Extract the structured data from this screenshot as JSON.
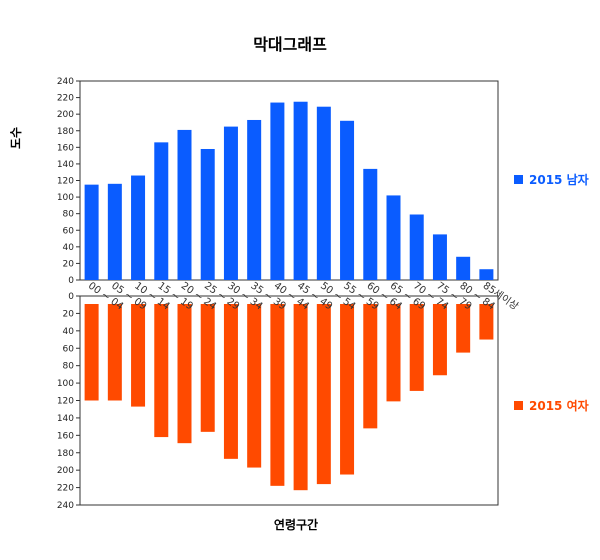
{
  "chart_data": {
    "type": "bar",
    "title": "막대그래프",
    "xlabel": "연령구간",
    "ylabel": "도수",
    "categories": [
      "00 ~ 04",
      "05 ~ 09",
      "10 ~ 14",
      "15 ~ 19",
      "20 ~ 24",
      "25 ~ 29",
      "30 ~ 34",
      "35 ~ 39",
      "40 ~ 44",
      "45 ~ 49",
      "50 ~ 54",
      "55 ~ 59",
      "60 ~ 64",
      "65 ~ 69",
      "70 ~ 74",
      "75 ~ 79",
      "80 ~ 84",
      "85세이상"
    ],
    "ylim": [
      0,
      240
    ],
    "yticks": [
      0,
      20,
      40,
      60,
      80,
      100,
      120,
      140,
      160,
      180,
      200,
      220,
      240
    ],
    "legend_position": "right",
    "series": [
      {
        "name": "2015 남자",
        "color": "#0a5cff",
        "values": [
          115,
          116,
          126,
          166,
          181,
          158,
          185,
          193,
          214,
          215,
          209,
          192,
          134,
          102,
          79,
          55,
          28,
          13
        ]
      },
      {
        "name": "2015 여자",
        "color": "#ff4a00",
        "values": [
          120,
          120,
          127,
          162,
          169,
          156,
          187,
          197,
          218,
          223,
          216,
          205,
          152,
          121,
          109,
          91,
          65,
          50
        ]
      }
    ]
  }
}
